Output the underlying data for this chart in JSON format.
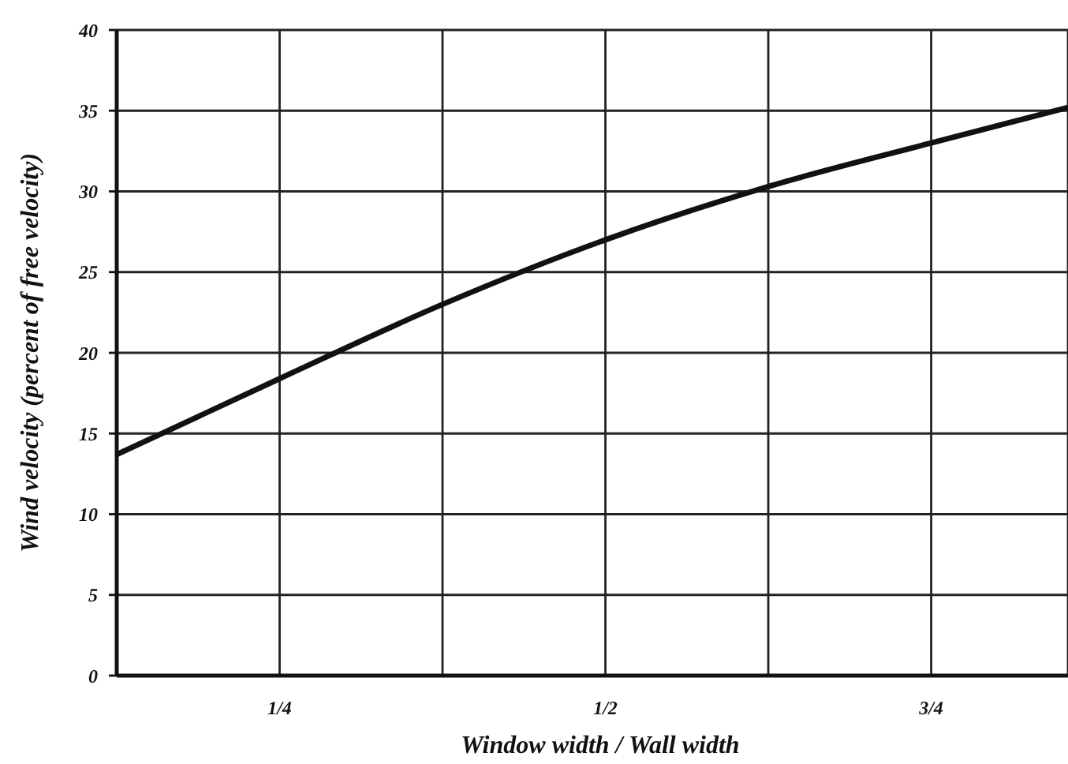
{
  "chart_data": {
    "type": "line",
    "xlabel": "Window width / Wall width",
    "ylabel": "Wind velocity (percent of free velocity)",
    "x": [
      0.125,
      0.25,
      0.375,
      0.5,
      0.625,
      0.75,
      0.855
    ],
    "series": [
      {
        "color": "#111111",
        "values": [
          13.7,
          18.4,
          23.0,
          27.0,
          30.3,
          33.0,
          35.2
        ]
      }
    ],
    "xlim": [
      0.125,
      0.855
    ],
    "xticks": [
      {
        "value": 0.25,
        "label": "1/4"
      },
      {
        "value": 0.375,
        "label": null
      },
      {
        "value": 0.5,
        "label": "1/2"
      },
      {
        "value": 0.625,
        "label": null
      },
      {
        "value": 0.75,
        "label": "3/4"
      }
    ],
    "ylim": [
      0,
      40
    ],
    "yticks": [
      0,
      5,
      10,
      15,
      20,
      25,
      30,
      35,
      40
    ],
    "grid": true
  }
}
